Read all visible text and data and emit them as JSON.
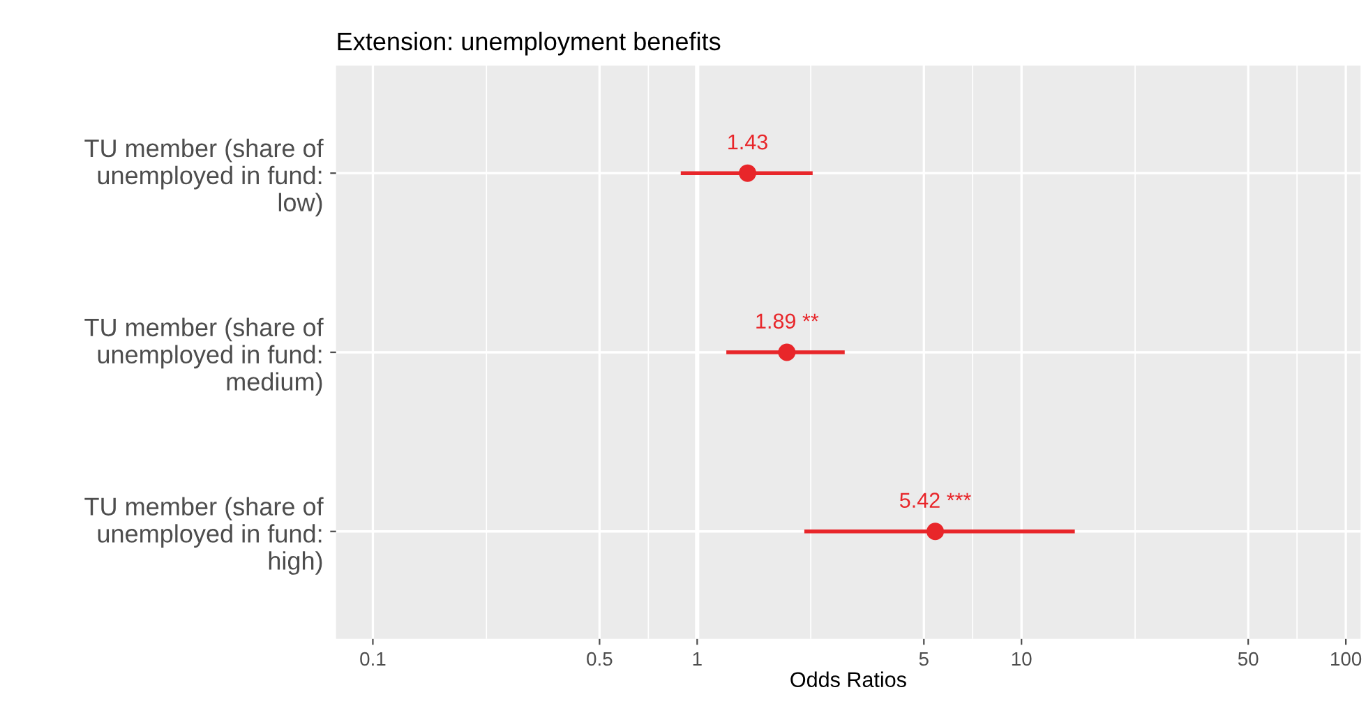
{
  "chart_data": {
    "type": "scatter",
    "title": "Extension: unemployment benefits",
    "xlabel": "Odds Ratios",
    "orientation": "horizontal",
    "categories": [
      "TU member (share of\nunemployed in fund:\nlow)",
      "TU member (share of\nunemployed in fund:\nmedium)",
      "TU member (share of\nunemployed in fund:\nhigh)"
    ],
    "series": [
      {
        "color": "#e8262a",
        "values": [
          1.43,
          1.89,
          5.42
        ],
        "errors": [
          [
            0.89,
            2.27
          ],
          [
            1.23,
            2.85
          ],
          [
            2.14,
            14.6
          ]
        ],
        "value_labels": [
          "1.43",
          "1.89 **",
          "5.42 ***"
        ]
      }
    ],
    "log": "x",
    "xlim": [
      0.077,
      111
    ],
    "xticks": [
      0.1,
      {
        "value": 0.224,
        "label": null
      },
      0.5,
      {
        "value": 0.707,
        "label": null
      },
      1,
      {
        "value": 2.24,
        "label": null
      },
      5,
      {
        "value": 7.07,
        "label": null
      },
      10,
      {
        "value": 22.4,
        "label": null
      },
      50,
      {
        "value": 70.7,
        "label": null
      },
      100
    ],
    "ref_lines": [
      {
        "axis": "x",
        "value": 1,
        "color": "#ffffff"
      }
    ],
    "grid": true,
    "marker": "circle"
  }
}
